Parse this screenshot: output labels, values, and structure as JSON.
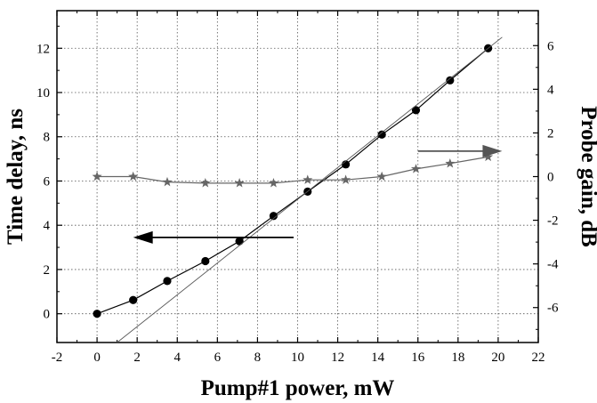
{
  "chart_data": {
    "type": "scatter",
    "xlabel": "Pump#1 power, mW",
    "ylabel": "Time delay, ns",
    "y2label": "Probe gain, dB",
    "xlim": [
      -2,
      22
    ],
    "ylim": [
      -1.3,
      13.7
    ],
    "y2lim": [
      -7.6,
      7.6
    ],
    "xticks": [
      "-2",
      "0",
      "2",
      "4",
      "6",
      "8",
      "10",
      "12",
      "14",
      "16",
      "18",
      "20",
      "22"
    ],
    "yticks": [
      "0",
      "2",
      "4",
      "6",
      "8",
      "10",
      "12"
    ],
    "y2ticks": [
      "-6",
      "-4",
      "-2",
      "0",
      "2",
      "4",
      "6"
    ],
    "grid": "dotted",
    "series": [
      {
        "axis": "left",
        "marker": "circle",
        "color": "#000000",
        "x": [
          0,
          1.8,
          3.5,
          5.4,
          7.1,
          8.8,
          10.5,
          12.4,
          14.2,
          15.9,
          17.6,
          19.5
        ],
        "y": [
          0,
          0.62,
          1.48,
          2.38,
          3.28,
          4.42,
          5.52,
          6.75,
          8.1,
          9.2,
          10.55,
          12.0
        ]
      },
      {
        "axis": "right",
        "marker": "star",
        "color": "#666666",
        "x": [
          0,
          1.8,
          3.5,
          5.4,
          7.1,
          8.8,
          10.5,
          12.4,
          14.2,
          15.9,
          17.6,
          19.5
        ],
        "y": [
          0,
          0,
          -0.25,
          -0.3,
          -0.3,
          -0.3,
          -0.15,
          -0.15,
          0,
          0.35,
          0.6,
          0.9
        ]
      },
      {
        "axis": "left",
        "marker": "none",
        "style": "fit-line",
        "color": "#555555",
        "x": [
          1.0,
          20.2
        ],
        "y": [
          -1.3,
          12.5
        ]
      }
    ],
    "annotations": [
      {
        "type": "arrow",
        "direction": "left",
        "axis": "left",
        "from": [
          9.8,
          3.45
        ],
        "to": [
          1.8,
          3.45
        ],
        "color": "#000000"
      },
      {
        "type": "arrow",
        "direction": "right",
        "axis": "left",
        "from": [
          16.0,
          7.35
        ],
        "to": [
          20.2,
          7.35
        ],
        "color": "#555555"
      }
    ]
  }
}
